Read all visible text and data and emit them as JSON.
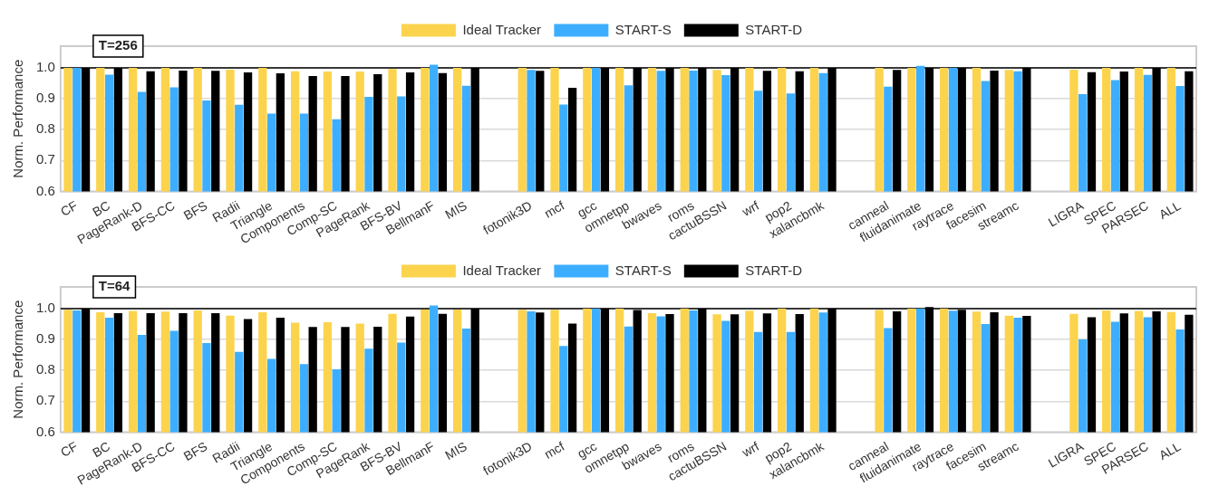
{
  "chart_data": [
    {
      "type": "bar",
      "ylabel": "Norm. Performance",
      "annotations": [
        "T=256"
      ],
      "legend": "top",
      "grid": "y",
      "ylim": [
        0.6,
        1.07
      ],
      "yticks": [
        0.6,
        0.7,
        0.8,
        0.9,
        {
          "value": 1,
          "label": "1.0"
        }
      ],
      "ref_lines": [
        {
          "axis": "y",
          "value": 1,
          "color": "#000000"
        }
      ],
      "categories": [
        "CF",
        "BC",
        "PageRank-D",
        "BFS-CC",
        "BFS",
        "Radii",
        "Triangle",
        "Components",
        "Comp-SC",
        "PageRank",
        "BFS-BV",
        "BellmanF",
        "MIS",
        null,
        "fotonik3D",
        "mcf",
        "gcc",
        "omnetpp",
        "bwaves",
        "roms",
        "cactuBSSN",
        "wrf",
        "pop2",
        "xalancbmk",
        null,
        "canneal",
        "fluidanimate",
        "raytrace",
        "facesim",
        "streamc",
        null,
        "LIGRA",
        "SPEC",
        "PARSEC",
        "ALL"
      ],
      "series": [
        {
          "name": "Ideal Tracker",
          "color": "#fcd34d",
          "values": [
            1.0,
            1.0,
            1.0,
            1.0,
            1.0,
            0.994,
            1.0,
            0.989,
            0.988,
            0.988,
            0.996,
            1.0,
            1.0,
            null,
            1.0,
            1.0,
            1.0,
            1.0,
            1.0,
            1.0,
            0.993,
            1.0,
            1.0,
            1.0,
            null,
            1.0,
            1.0,
            1.0,
            1.0,
            0.993,
            null,
            0.994,
            1.0,
            1.0,
            1.0
          ]
        },
        {
          "name": "START-S",
          "color": "#3daeff",
          "values": [
            1.0,
            0.978,
            0.922,
            0.937,
            0.894,
            0.88,
            0.852,
            0.852,
            0.833,
            0.906,
            0.907,
            1.01,
            0.942,
            null,
            0.993,
            0.881,
            1.0,
            0.943,
            0.99,
            0.991,
            0.976,
            0.926,
            0.917,
            0.983,
            null,
            0.939,
            1.006,
            1.0,
            0.957,
            0.989,
            null,
            0.915,
            0.96,
            0.977,
            0.941
          ]
        },
        {
          "name": "START-D",
          "color": "#000000",
          "values": [
            1.0,
            1.0,
            0.989,
            0.991,
            0.99,
            0.985,
            0.982,
            0.973,
            0.973,
            0.979,
            0.985,
            0.983,
            1.0,
            null,
            0.99,
            0.935,
            1.0,
            1.0,
            1.0,
            1.0,
            1.0,
            0.99,
            0.989,
            1.0,
            null,
            0.993,
            1.0,
            1.0,
            0.991,
            1.0,
            null,
            0.986,
            0.988,
            1.0,
            0.989
          ]
        }
      ]
    },
    {
      "type": "bar",
      "ylabel": "Norm. Performance",
      "annotations": [
        "T=64"
      ],
      "legend": "top",
      "grid": "y",
      "ylim": [
        0.6,
        1.07
      ],
      "yticks": [
        0.6,
        0.7,
        0.8,
        0.9,
        {
          "value": 1,
          "label": "1.0"
        }
      ],
      "ref_lines": [
        {
          "axis": "y",
          "value": 1,
          "color": "#000000"
        }
      ],
      "categories": [
        "CF",
        "BC",
        "PageRank-D",
        "BFS-CC",
        "BFS",
        "Radii",
        "Triangle",
        "Components",
        "Comp-SC",
        "PageRank",
        "BFS-BV",
        "BellmanF",
        "MIS",
        null,
        "fotonik3D",
        "mcf",
        "gcc",
        "omnetpp",
        "bwaves",
        "roms",
        "cactuBSSN",
        "wrf",
        "pop2",
        "xalancbmk",
        null,
        "canneal",
        "fluidanimate",
        "raytrace",
        "facesim",
        "streamc",
        null,
        "LIGRA",
        "SPEC",
        "PARSEC",
        "ALL"
      ],
      "series": [
        {
          "name": "Ideal Tracker",
          "color": "#fcd34d",
          "values": [
            0.996,
            0.988,
            0.992,
            0.99,
            0.994,
            0.977,
            0.988,
            0.954,
            0.956,
            0.951,
            0.983,
            0.997,
            0.997,
            null,
            0.996,
            0.996,
            1.0,
            1.0,
            0.985,
            1.0,
            0.981,
            0.993,
            1.0,
            1.0,
            null,
            0.995,
            1.0,
            1.0,
            0.99,
            0.977,
            null,
            0.983,
            0.994,
            0.992,
            0.989
          ]
        },
        {
          "name": "START-S",
          "color": "#3daeff",
          "values": [
            0.994,
            0.97,
            0.915,
            0.928,
            0.888,
            0.86,
            0.837,
            0.82,
            0.803,
            0.87,
            0.89,
            1.01,
            0.935,
            null,
            0.991,
            0.879,
            1.0,
            0.942,
            0.975,
            0.994,
            0.96,
            0.924,
            0.924,
            0.987,
            null,
            0.937,
            1.0,
            0.993,
            0.95,
            0.97,
            null,
            0.9,
            0.957,
            0.972,
            0.932
          ]
        },
        {
          "name": "START-D",
          "color": "#000000",
          "values": [
            1.0,
            0.985,
            0.985,
            0.985,
            0.985,
            0.966,
            0.97,
            0.94,
            0.94,
            0.941,
            0.974,
            0.983,
            1.0,
            null,
            0.987,
            0.951,
            1.0,
            0.995,
            0.982,
            1.0,
            0.981,
            0.984,
            0.982,
            1.0,
            null,
            0.991,
            1.005,
            0.996,
            0.988,
            0.976,
            null,
            0.972,
            0.984,
            0.991,
            0.98
          ]
        }
      ]
    }
  ]
}
